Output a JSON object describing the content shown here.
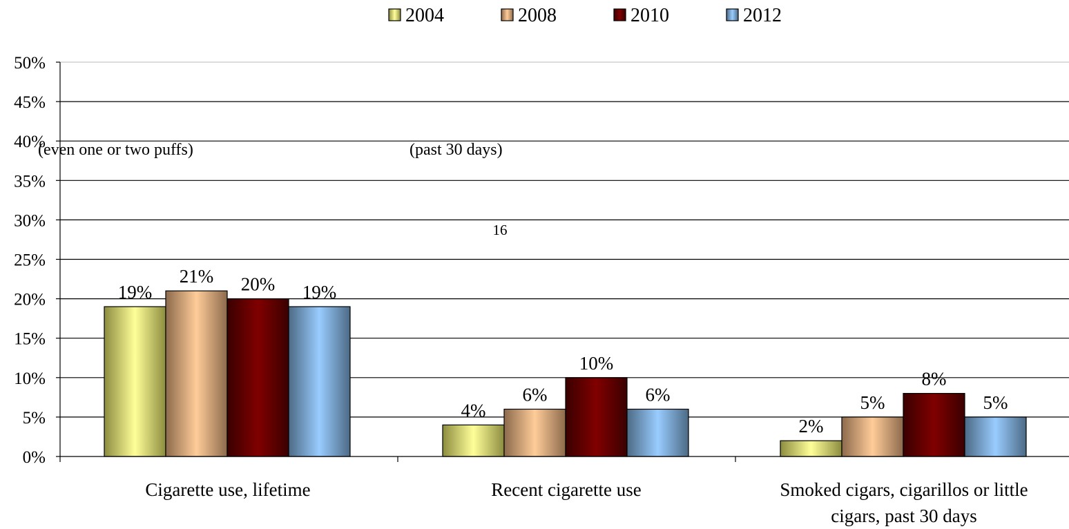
{
  "chart_data": {
    "type": "bar",
    "categories": [
      "Cigarette use, lifetime",
      "Recent cigarette use",
      "Smoked cigars, cigarillos or little cigars, past 30 days"
    ],
    "category_lines": [
      [
        "Cigarette use, lifetime"
      ],
      [
        "Recent cigarette use"
      ],
      [
        "Smoked cigars, cigarillos or little",
        "cigars, past 30 days"
      ]
    ],
    "series": [
      {
        "name": "2004",
        "values": [
          19,
          4,
          2
        ],
        "labels": [
          "19%",
          "4%",
          "2%"
        ],
        "color_light": "#ffff99",
        "color_dark": "#8c8c40"
      },
      {
        "name": "2008",
        "values": [
          21,
          6,
          5
        ],
        "labels": [
          "21%",
          "6%",
          "5%"
        ],
        "color_light": "#ffcc99",
        "color_dark": "#8c6a4c"
      },
      {
        "name": "2010",
        "values": [
          20,
          10,
          8
        ],
        "labels": [
          "20%",
          "10%",
          "8%"
        ],
        "color_light": "#800000",
        "color_dark": "#3a0000"
      },
      {
        "name": "2012",
        "values": [
          19,
          6,
          5
        ],
        "labels": [
          "19%",
          "6%",
          "5%"
        ],
        "color_light": "#99ccff",
        "color_dark": "#4c6a85"
      }
    ],
    "y_ticks": [
      "0%",
      "5%",
      "10%",
      "15%",
      "20%",
      "25%",
      "30%",
      "35%",
      "40%",
      "45%",
      "50%"
    ],
    "ylim": [
      0,
      50
    ],
    "grid": true,
    "legend_position": "top-center",
    "annotations": [
      "(even one or two puffs)",
      "(past 30 days)",
      "16"
    ],
    "title": "",
    "xlabel": "",
    "ylabel": ""
  }
}
